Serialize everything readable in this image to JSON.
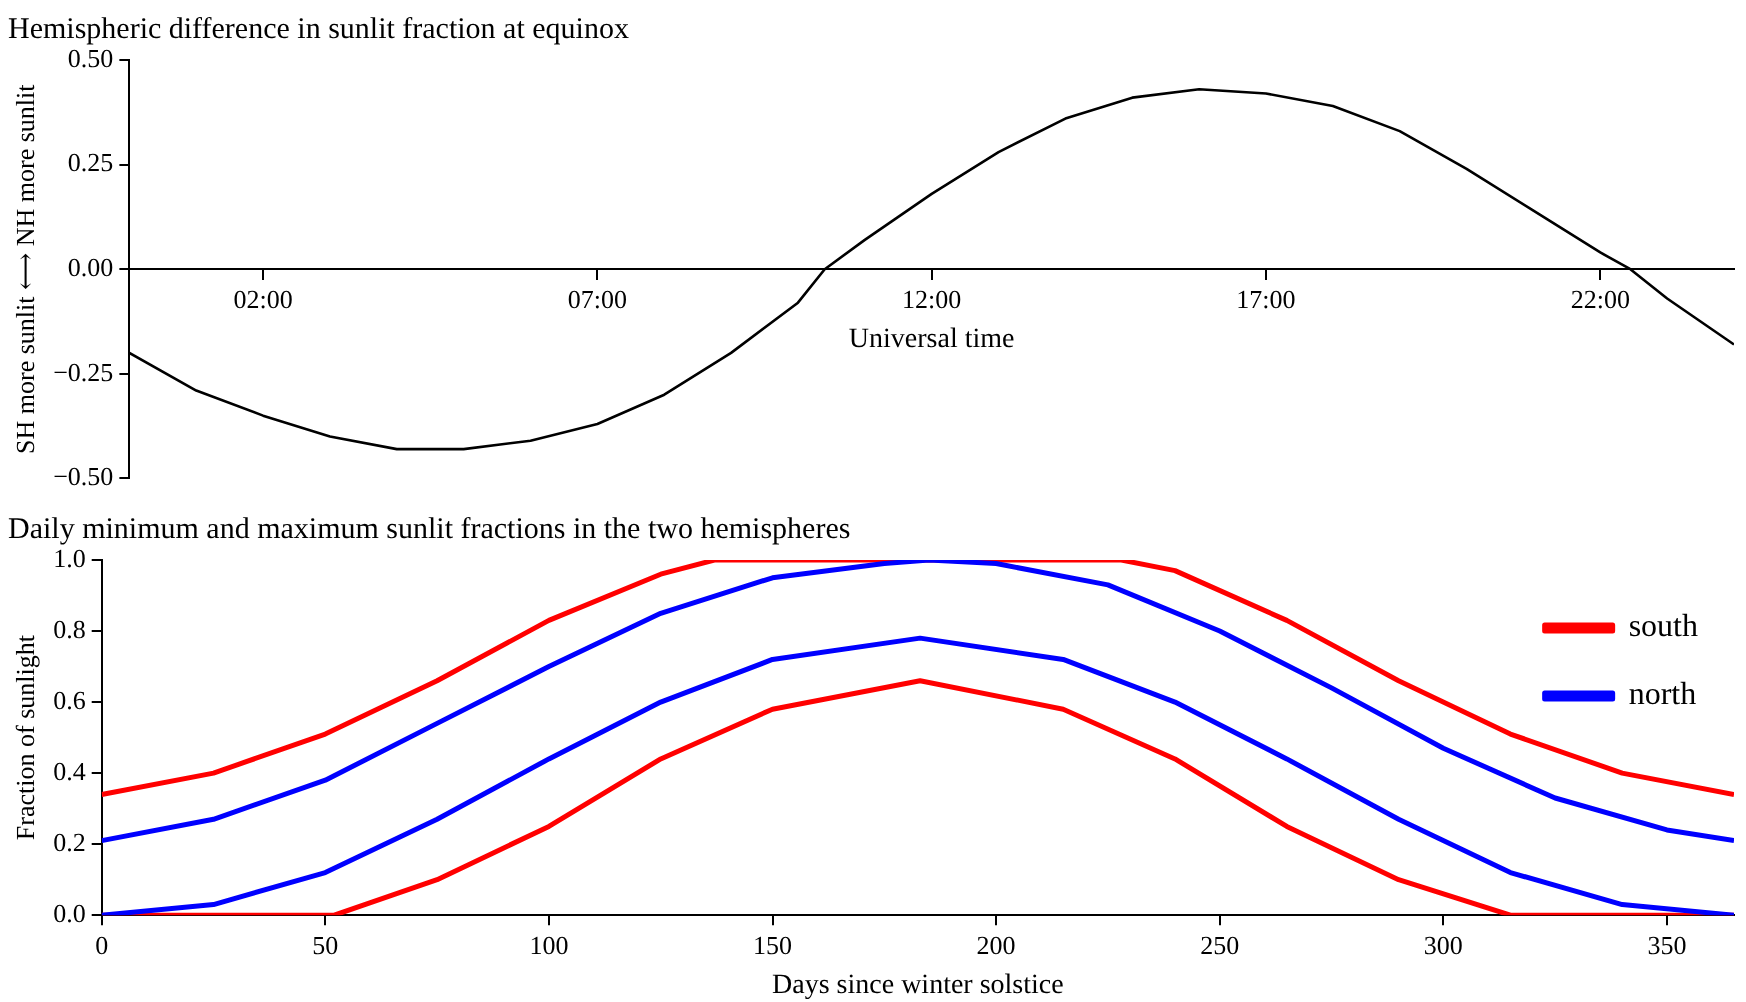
{
  "chart_data": [
    {
      "type": "line",
      "title": "Hemispheric difference in sunlit fraction at equinox",
      "xlabel": "Universal time",
      "ylabel": "SH more sunlit ⟷ NH more sunlit",
      "series": [
        {
          "color": "#000000",
          "x": [
            0,
            1,
            2,
            3,
            4,
            5,
            6,
            7,
            8,
            9,
            10,
            10.4,
            11,
            12,
            13,
            14,
            15,
            16,
            17,
            18,
            19,
            20,
            21,
            22,
            22.45,
            23,
            24
          ],
          "values": [
            -0.2,
            -0.29,
            -0.35,
            -0.4,
            -0.43,
            -0.43,
            -0.41,
            -0.37,
            -0.3,
            -0.2,
            -0.08,
            0,
            0.07,
            0.18,
            0.28,
            0.36,
            0.41,
            0.43,
            0.42,
            0.39,
            0.33,
            0.24,
            0.14,
            0.04,
            0,
            -0.07,
            -0.18
          ]
        }
      ],
      "xlim": [
        0,
        24
      ],
      "xticks": [
        {
          "value": 2,
          "label": "02:00"
        },
        {
          "value": 7,
          "label": "07:00"
        },
        {
          "value": 12,
          "label": "12:00"
        },
        {
          "value": 17,
          "label": "17:00"
        },
        {
          "value": 22,
          "label": "22:00"
        }
      ],
      "ylim": [
        -0.5,
        0.5
      ],
      "yticks": [
        {
          "value": -0.5,
          "label": "−0.50"
        },
        {
          "value": -0.25,
          "label": "−0.25"
        },
        {
          "value": 0,
          "label": "0.00"
        },
        {
          "value": 0.25,
          "label": "0.25"
        },
        {
          "value": 0.5,
          "label": "0.50"
        }
      ],
      "grid": false,
      "legend": false
    },
    {
      "type": "line",
      "title": "Daily minimum and maximum sunlit fractions in the two hemispheres",
      "xlabel": "Days since winter solstice",
      "ylabel": "Fraction of sunlight",
      "series": [
        {
          "name": "south",
          "color": "#ff0000",
          "x": [
            0,
            25,
            50,
            75,
            100,
            125,
            137,
            228,
            240,
            265,
            290,
            315,
            340,
            365
          ],
          "values": [
            0.34,
            0.4,
            0.51,
            0.66,
            0.83,
            0.96,
            1.0,
            1.0,
            0.97,
            0.83,
            0.66,
            0.51,
            0.4,
            0.34
          ]
        },
        {
          "color": "#ff0000",
          "x": [
            0,
            52,
            75,
            100,
            125,
            150,
            183,
            215,
            240,
            265,
            290,
            315,
            365
          ],
          "values": [
            0,
            0,
            0.1,
            0.25,
            0.44,
            0.58,
            0.66,
            0.58,
            0.44,
            0.25,
            0.1,
            0,
            0
          ]
        },
        {
          "name": "north",
          "color": "#0000ff",
          "x": [
            0,
            25,
            50,
            75,
            100,
            125,
            150,
            175,
            185,
            200,
            225,
            250,
            275,
            300,
            325,
            350,
            365
          ],
          "values": [
            0.21,
            0.27,
            0.38,
            0.54,
            0.7,
            0.85,
            0.95,
            0.99,
            1.0,
            0.99,
            0.93,
            0.8,
            0.64,
            0.47,
            0.33,
            0.24,
            0.21
          ]
        },
        {
          "color": "#0000ff",
          "x": [
            0,
            25,
            50,
            75,
            100,
            125,
            150,
            183,
            215,
            240,
            265,
            290,
            315,
            340,
            365
          ],
          "values": [
            0,
            0.03,
            0.12,
            0.27,
            0.44,
            0.6,
            0.72,
            0.78,
            0.72,
            0.6,
            0.44,
            0.27,
            0.12,
            0.03,
            0
          ]
        }
      ],
      "xlim": [
        0,
        365
      ],
      "xticks": [
        0,
        50,
        100,
        150,
        200,
        250,
        300,
        350
      ],
      "ylim": [
        0,
        1
      ],
      "yticks": [
        {
          "value": 0,
          "label": "0.0"
        },
        {
          "value": 0.2,
          "label": "0.2"
        },
        {
          "value": 0.4,
          "label": "0.4"
        },
        {
          "value": 0.6,
          "label": "0.6"
        },
        {
          "value": 0.8,
          "label": "0.8"
        },
        {
          "value": 1,
          "label": "1.0"
        }
      ],
      "grid": false,
      "legend": "top right"
    }
  ]
}
